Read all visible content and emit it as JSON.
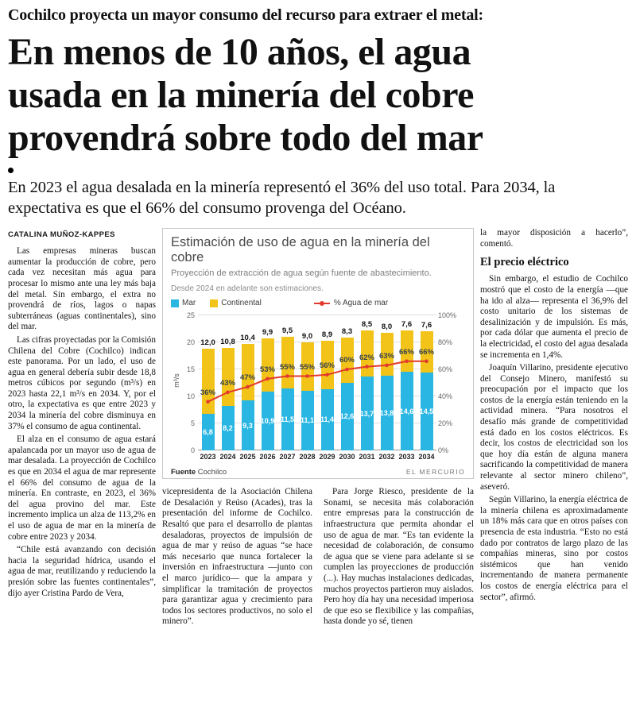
{
  "header": {
    "kicker": "Cochilco proyecta un mayor consumo del recurso para extraer el metal:",
    "headline_lines": [
      "En menos de 10 años, el agua",
      "usada en la minería del cobre",
      "provendrá sobre todo del mar"
    ],
    "deck": "En 2023 el agua desalada en la minería representó el 36% del uso total. Para 2034, la expectativa es que el 66% del consumo provenga del Océano."
  },
  "byline": "CATALINA MUÑOZ-KAPPES",
  "columns": {
    "col1": [
      "Las empresas mineras buscan aumentar la producción de cobre, pero cada vez necesitan más agua para procesar lo mismo ante una ley más baja del metal. Sin embargo, el extra no provendrá de ríos, lagos o napas subterráneas (aguas continentales), sino del mar.",
      "Las cifras proyectadas por la Comisión Chilena del Cobre (Cochilco) indican este panorama. Por un lado, el uso de agua en general debería subir desde 18,8 metros cúbicos por segundo (m³/s) en 2023 hasta 22,1 m³/s en 2034. Y, por el otro, la expectativa es que entre 2023 y 2034 la minería del cobre disminuya en 37% el consumo de agua continental.",
      "El alza en el consumo de agua estará apalancada por un mayor uso de agua de mar desalada. La proyección de Cochilco es que en 2034 el agua de mar represente el 66% del consumo de agua de la minería. En contraste, en 2023, el 36% del agua provino del mar. Este incremento implica un alza de 113,2% en el uso de agua de mar en la minería de cobre entre 2023 y 2034.",
      "“Chile está avanzando con decisión hacia la seguridad hídrica, usando el agua de mar, reutilizando y reduciendo la presión sobre las fuentes continentales”, dijo ayer Cristina Pardo de Vera,"
    ],
    "col2": [
      "vicepresidenta de la Asociación Chilena de Desalación y Reúso (Acades), tras la presentación del informe de Cochilco. Resaltó que para el desarrollo de plantas desaladoras, proyectos de impulsión de agua de mar y reúso de aguas “se hace más necesario que nunca fortalecer la inversión en infraestructura —junto con el marco jurídico— que la ampara y simplificar la tramitación de proyectos para garantizar agua y crecimiento para todos los sectores productivos, no solo el minero”."
    ],
    "col3": [
      "Para Jorge Riesco, presidente de la Sonami, se necesita más colaboración entre empresas para la construcción de infraestructura que permita ahondar el uso de agua de mar. “Es tan evidente la necesidad de colaboración, de consumo de agua que se viene para adelante si se cumplen las proyecciones de producción (...). Hay muchas instalaciones dedicadas, muchos proyectos partieron muy aislados. Pero hoy día hay una necesidad imperiosa de que eso se flexibilice y las compañías, hasta donde yo sé, tienen"
    ],
    "col4_intro": "la mayor disposición a hacerlo”, comentó.",
    "col4_header": "El precio eléctrico",
    "col4": [
      "Sin embargo, el estudio de Cochilco mostró que el costo de la energía —que ha ido al alza— representa el 36,9% del costo unitario de los sistemas de desalinización y de impulsión. Es más, por cada dólar que aumenta el precio de la electricidad, el costo del agua desalada se incrementa en 1,4%.",
      "Joaquín Villarino, presidente ejecutivo del Consejo Minero, manifestó su preocupación por el impacto que los costos de la energía están teniendo en la actividad minera. “Para nosotros el desafío más grande de competitividad está dado en los costos eléctricos. Es decir, los costos de electricidad son los que hoy día están de alguna manera sacrificando la competitividad de manera relevante al sector minero chileno”, aseveró.",
      "Según Villarino, la energía eléctrica de la minería chilena es aproximadamente un 18% más cara que en otros países con presencia de esta industria. “Esto no está dado por contratos de largo plazo de las compañías mineras, sino por costos sistémicos que han venido incrementando de manera permanente los costos de energía eléctrica para el sector”, afirmó."
    ]
  },
  "chart_data": {
    "type": "bar",
    "stacked": true,
    "title": "Estimación de uso de agua en la minería del cobre",
    "subtitle": "Proyección de extracción de agua según fuente de abastecimiento.",
    "note": "Desde 2024 en adelante son estimaciones.",
    "ylabel": "m³/s",
    "categories": [
      "2023",
      "2024",
      "2025",
      "2026",
      "2027",
      "2028",
      "2029",
      "2030",
      "2031",
      "2032",
      "2033",
      "2034"
    ],
    "series": [
      {
        "name": "Mar",
        "type": "bar",
        "color": "#29b6e3",
        "values": [
          6.8,
          8.2,
          9.3,
          10.9,
          11.5,
          11.1,
          11.4,
          12.6,
          13.7,
          13.8,
          14.6,
          14.5
        ]
      },
      {
        "name": "Continental",
        "type": "bar",
        "color": "#f2c318",
        "values": [
          12.0,
          10.8,
          10.4,
          9.9,
          9.5,
          9.0,
          8.9,
          8.3,
          8.5,
          8.0,
          7.6,
          7.6
        ]
      },
      {
        "name": "% Agua de mar",
        "type": "line",
        "axis": "right",
        "color": "#e23a2e",
        "values": [
          36,
          43,
          47,
          53,
          55,
          55,
          56,
          60,
          62,
          63,
          66,
          66
        ]
      }
    ],
    "bar_labels": {
      "mar": [
        "6,8",
        "8,2",
        "9,3",
        "10,9",
        "11,5",
        "11,1",
        "11,4",
        "12,6",
        "13,7",
        "13,8",
        "14,6",
        "14,5"
      ],
      "continental": [
        "12,0",
        "10,8",
        "10,4",
        "9,9",
        "9,5",
        "9,0",
        "8,9",
        "8,3",
        "8,5",
        "8,0",
        "7,6",
        "7,6"
      ],
      "pct": [
        "36%",
        "43%",
        "47%",
        "53%",
        "55%",
        "55%",
        "56%",
        "60%",
        "62%",
        "63%",
        "66%",
        "66%"
      ]
    },
    "ylim": [
      0,
      25
    ],
    "y2lim": [
      0,
      100
    ],
    "yticks": [
      0,
      5,
      10,
      15,
      20,
      25
    ],
    "y2ticks": [
      "0%",
      "20%",
      "40%",
      "60%",
      "80%",
      "100%"
    ],
    "grid": true,
    "legend_position": "top",
    "source_label": "Fuente",
    "source": "Cochilco",
    "credit": "EL MERCURIO"
  }
}
